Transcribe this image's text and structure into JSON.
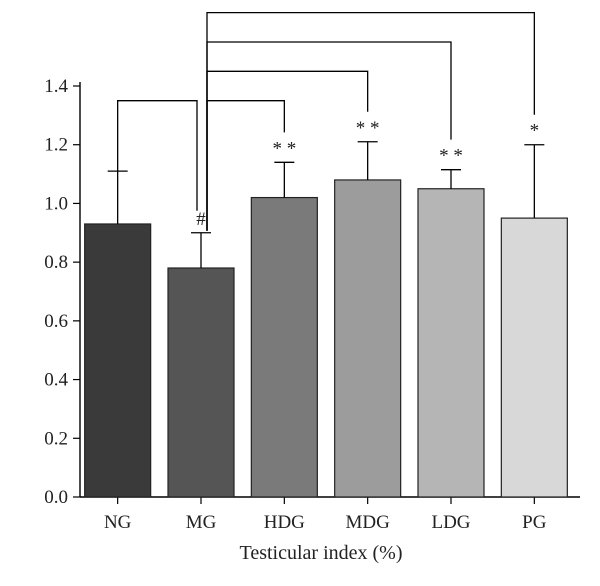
{
  "chart_data": {
    "type": "bar",
    "categories": [
      "NG",
      "MG",
      "HDG",
      "MDG",
      "LDG",
      "PG"
    ],
    "values": [
      0.93,
      0.78,
      1.02,
      1.08,
      1.05,
      0.95
    ],
    "errors": [
      0.18,
      0.12,
      0.12,
      0.13,
      0.065,
      0.25
    ],
    "colors": [
      "#3a3a3a",
      "#555555",
      "#7a7a7a",
      "#9c9c9c",
      "#b5b5b5",
      "#d8d8d8"
    ],
    "significance": [
      "",
      "#",
      "* *",
      "* *",
      "* *",
      "*"
    ],
    "xlabel": "Testicular index (%)",
    "ylabel": "",
    "ylim": [
      0,
      1.4
    ],
    "yticks": [
      "0.0",
      "0.2",
      "0.4",
      "0.6",
      "0.8",
      "1.0",
      "1.2",
      "1.4"
    ],
    "grid": false,
    "comparisons": [
      {
        "from": "NG",
        "to": "MG",
        "level": 1.35
      },
      {
        "from": "MG",
        "to": "HDG",
        "level": 1.35
      },
      {
        "from": "MG",
        "to": "MDG",
        "level": 1.45
      },
      {
        "from": "MG",
        "to": "LDG",
        "level": 1.55
      },
      {
        "from": "MG",
        "to": "PG",
        "level": 1.65
      }
    ]
  }
}
